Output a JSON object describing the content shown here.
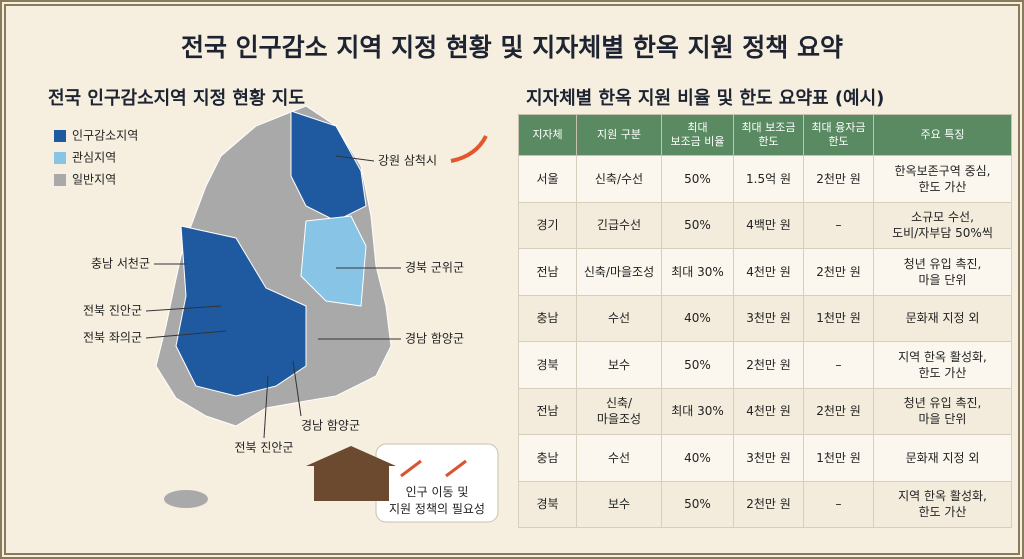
{
  "header": {
    "title": "전국 인구감소 지역 지정 현황 및 지자체별 한옥 지원 정책 요약"
  },
  "map": {
    "title": "전국 인구감소지역 지정 현황 지도",
    "legend": [
      "인구감소지역",
      "관심지역",
      "일반지역"
    ],
    "labels": [
      "강원 삼척시",
      "경북 군위군",
      "충남 서천군",
      "전북 진안군",
      "전북 좌의군",
      "경남 함양군",
      "경남 함양군",
      "전북 진안군"
    ],
    "note": "인구 이동 및\n지원 정책의 필요성"
  },
  "table": {
    "title": "지자체별 한옥 지원 비율 및 한도 요약표 (예시)",
    "headers": [
      "지자체",
      "지원 구분",
      "최대\n보조금 비율",
      "최대 보조금\n한도",
      "최대 융자금\n한도",
      "주요 특징"
    ],
    "rows": [
      [
        "서울",
        "신축/수선",
        "50%",
        "1.5억 원",
        "2천만 원",
        "한옥보존구역 중심,\n한도 가산"
      ],
      [
        "경기",
        "긴급수선",
        "50%",
        "4백만 원",
        "–",
        "소규모 수선,\n도비/자부담 50%씩"
      ],
      [
        "전남",
        "신축/마을조성",
        "최대 30%",
        "4천만 원",
        "2천만 원",
        "청년 유입 촉진,\n마을 단위"
      ],
      [
        "충남",
        "수선",
        "40%",
        "3천만 원",
        "1천만 원",
        "문화재 지정 외"
      ],
      [
        "경북",
        "보수",
        "50%",
        "2천만 원",
        "–",
        "지역 한옥 활성화,\n한도 가산"
      ],
      [
        "전남",
        "신축/\n마을조성",
        "최대 30%",
        "4천만 원",
        "2천만 원",
        "청년 유입 촉진,\n마을 단위"
      ],
      [
        "충남",
        "수선",
        "40%",
        "3천만 원",
        "1천만 원",
        "문화재 지정 외"
      ],
      [
        "경북",
        "보수",
        "50%",
        "2천만 원",
        "–",
        "지역 한옥 활성화,\n한도 가산"
      ]
    ]
  }
}
